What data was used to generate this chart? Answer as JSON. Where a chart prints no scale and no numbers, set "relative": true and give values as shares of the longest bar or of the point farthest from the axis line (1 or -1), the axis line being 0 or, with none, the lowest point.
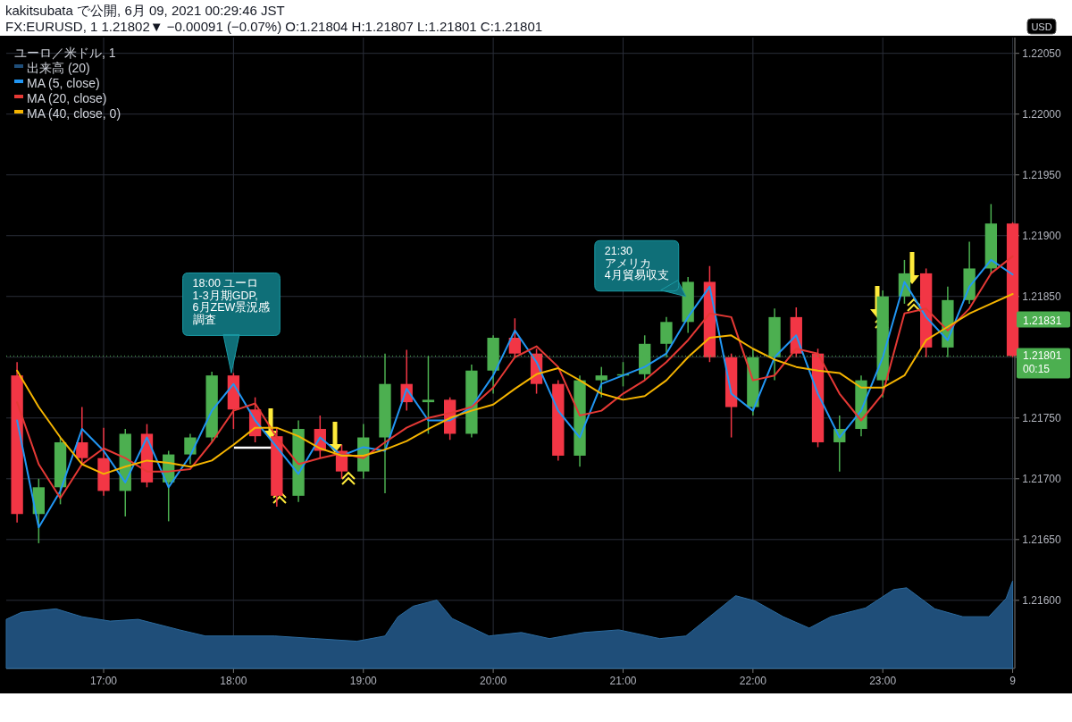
{
  "chart_data": [
    {
      "type": "candlestick",
      "title": "kakitsubata で公開, 6月 09, 2021 00:29:46 JST",
      "subtitle": "FX:EURUSD, 1 1.21802▼ −0.00091 (−0.07%) O:1.21804 H:1.21807 L:1.21801 C:1.21801",
      "legend_title": "ユーロ／米ドル, 1",
      "legend": "top left",
      "grid": "y",
      "tick_labels": "y",
      "xlim": [
        "2021-06-08T16:15",
        "2021-06-09T00:01"
      ],
      "ylim": [
        1.21544,
        1.22063
      ],
      "yticks": [
        {
          "value": 1.216,
          "label": "1.21600"
        },
        {
          "value": 1.2165,
          "label": "1.21650"
        },
        {
          "value": 1.217,
          "label": "1.21700"
        },
        {
          "value": 1.2175,
          "label": "1.21750"
        },
        {
          "value": 1.218,
          "label": null
        },
        {
          "value": 1.2185,
          "label": "1.21850"
        },
        {
          "value": 1.219,
          "label": "1.21900"
        },
        {
          "value": 1.2195,
          "label": "1.21950"
        },
        {
          "value": 1.22,
          "label": "1.22000"
        },
        {
          "value": 1.2205,
          "label": "1.22050"
        }
      ],
      "x": [
        "2021-06-08T16:20",
        "2021-06-08T16:30",
        "2021-06-08T16:40",
        "2021-06-08T16:50",
        "2021-06-08T17:00",
        "2021-06-08T17:10",
        "2021-06-08T17:20",
        "2021-06-08T17:30",
        "2021-06-08T17:40",
        "2021-06-08T17:50",
        "2021-06-08T18:00",
        "2021-06-08T18:10",
        "2021-06-08T18:20",
        "2021-06-08T18:30",
        "2021-06-08T18:40",
        "2021-06-08T18:50",
        "2021-06-08T19:00",
        "2021-06-08T19:10",
        "2021-06-08T19:20",
        "2021-06-08T19:30",
        "2021-06-08T19:40",
        "2021-06-08T19:50",
        "2021-06-08T20:00",
        "2021-06-08T20:10",
        "2021-06-08T20:20",
        "2021-06-08T20:30",
        "2021-06-08T20:40",
        "2021-06-08T20:50",
        "2021-06-08T21:00",
        "2021-06-08T21:10",
        "2021-06-08T21:20",
        "2021-06-08T21:30",
        "2021-06-08T21:40",
        "2021-06-08T21:50",
        "2021-06-08T22:00",
        "2021-06-08T22:10",
        "2021-06-08T22:20",
        "2021-06-08T22:30",
        "2021-06-08T22:40",
        "2021-06-08T22:50",
        "2021-06-08T23:00",
        "2021-06-08T23:10",
        "2021-06-08T23:20",
        "2021-06-08T23:30",
        "2021-06-08T23:40",
        "2021-06-08T23:50",
        "2021-06-09T00:00"
      ],
      "ohlc": [
        [
          1.21785,
          1.21796,
          1.21664,
          1.21671
        ],
        [
          1.21671,
          1.217,
          1.21647,
          1.21693
        ],
        [
          1.21693,
          1.21734,
          1.21679,
          1.2173
        ],
        [
          1.2173,
          1.21759,
          1.21712,
          1.21717
        ],
        [
          1.21717,
          1.21742,
          1.21686,
          1.2169
        ],
        [
          1.2169,
          1.21741,
          1.21669,
          1.21737
        ],
        [
          1.21737,
          1.21745,
          1.21693,
          1.21697
        ],
        [
          1.21697,
          1.21723,
          1.21665,
          1.2172
        ],
        [
          1.2172,
          1.21737,
          1.21712,
          1.21734
        ],
        [
          1.21734,
          1.21788,
          1.2173,
          1.21785
        ],
        [
          1.21785,
          1.21787,
          1.21741,
          1.21757
        ],
        [
          1.21757,
          1.21767,
          1.2173,
          1.21735
        ],
        [
          1.21735,
          1.21742,
          1.21677,
          1.21686
        ],
        [
          1.21686,
          1.21748,
          1.21681,
          1.21741
        ],
        [
          1.21741,
          1.21752,
          1.21717,
          1.21723
        ],
        [
          1.21723,
          1.21728,
          1.217,
          1.21706
        ],
        [
          1.21706,
          1.21745,
          1.217,
          1.21734
        ],
        [
          1.21734,
          1.21803,
          1.21688,
          1.21778
        ],
        [
          1.21778,
          1.21806,
          1.21756,
          1.21763
        ],
        [
          1.21763,
          1.21801,
          1.21737,
          1.21765
        ],
        [
          1.21765,
          1.21767,
          1.21732,
          1.21737
        ],
        [
          1.21737,
          1.21794,
          1.21734,
          1.21789
        ],
        [
          1.21789,
          1.21818,
          1.2177,
          1.21816
        ],
        [
          1.21816,
          1.21832,
          1.218,
          1.21803
        ],
        [
          1.21803,
          1.21807,
          1.2177,
          1.21778
        ],
        [
          1.21778,
          1.21781,
          1.21715,
          1.21719
        ],
        [
          1.21719,
          1.21785,
          1.2171,
          1.21781
        ],
        [
          1.21781,
          1.21792,
          1.21767,
          1.21785
        ],
        [
          1.21785,
          1.21796,
          1.21776,
          1.21786
        ],
        [
          1.21786,
          1.21818,
          1.21781,
          1.21811
        ],
        [
          1.21811,
          1.21833,
          1.218,
          1.21829
        ],
        [
          1.21829,
          1.21866,
          1.2182,
          1.21862
        ],
        [
          1.21862,
          1.21875,
          1.21796,
          1.218
        ],
        [
          1.218,
          1.21803,
          1.21734,
          1.21759
        ],
        [
          1.21759,
          1.21807,
          1.21752,
          1.218
        ],
        [
          1.218,
          1.2184,
          1.21781,
          1.21833
        ],
        [
          1.21833,
          1.21841,
          1.218,
          1.21803
        ],
        [
          1.21803,
          1.21807,
          1.21726,
          1.2173
        ],
        [
          1.2173,
          1.21752,
          1.21706,
          1.21741
        ],
        [
          1.21741,
          1.21785,
          1.21735,
          1.21781
        ],
        [
          1.21781,
          1.21855,
          1.21767,
          1.2185
        ],
        [
          1.2185,
          1.2188,
          1.21844,
          1.21869
        ],
        [
          1.21869,
          1.21873,
          1.218,
          1.21808
        ],
        [
          1.21808,
          1.21858,
          1.218,
          1.21847
        ],
        [
          1.21847,
          1.21895,
          1.21844,
          1.21873
        ],
        [
          1.21873,
          1.21926,
          1.21869,
          1.2191
        ],
        [
          1.2191,
          1.21911,
          1.218,
          1.21801
        ]
      ],
      "colors": [
        "#f23645",
        "#4caf50",
        "#4caf50",
        "#f23645",
        "#f23645",
        "#4caf50",
        "#f23645",
        "#4caf50",
        "#4caf50",
        "#4caf50",
        "#f23645",
        "#f23645",
        "#f23645",
        "#4caf50",
        "#f23645",
        "#f23645",
        "#4caf50",
        "#4caf50",
        "#f23645",
        "#4caf50",
        "#f23645",
        "#4caf50",
        "#4caf50",
        "#f23645",
        "#f23645",
        "#f23645",
        "#4caf50",
        "#4caf50",
        "#4caf50",
        "#4caf50",
        "#4caf50",
        "#4caf50",
        "#f23645",
        "#f23645",
        "#4caf50",
        "#4caf50",
        "#f23645",
        "#f23645",
        "#4caf50",
        "#4caf50",
        "#4caf50",
        "#4caf50",
        "#f23645",
        "#4caf50",
        "#4caf50",
        "#4caf50",
        "#f23645"
      ],
      "series": [
        {
          "name": "MA (5, close)",
          "type": "line",
          "color": "#2196f3",
          "values": [
            1.21748,
            1.2166,
            1.2169,
            1.21741,
            1.21723,
            1.21697,
            1.21734,
            1.21693,
            1.21719,
            1.21756,
            1.21778,
            1.21748,
            1.21726,
            1.21704,
            1.21734,
            1.21719,
            1.21726,
            1.21723,
            1.21774,
            1.21748,
            1.21748,
            1.21759,
            1.21785,
            1.21822,
            1.21796,
            1.21756,
            1.21734,
            1.21778,
            1.21785,
            1.21792,
            1.21803,
            1.21833,
            1.21858,
            1.2177,
            1.21756,
            1.218,
            1.21818,
            1.2177,
            1.21734,
            1.21756,
            1.218,
            1.21862,
            1.21833,
            1.21814,
            1.21858,
            1.2188,
            1.21868
          ]
        },
        {
          "name": "MA (20, close)",
          "type": "line",
          "color": "#e53935",
          "values": [
            1.21763,
            1.21712,
            1.21684,
            1.21712,
            1.21725,
            1.21717,
            1.21706,
            1.21706,
            1.21708,
            1.2173,
            1.21756,
            1.21762,
            1.21734,
            1.21712,
            1.21717,
            1.21721,
            1.21717,
            1.2173,
            1.21742,
            1.2175,
            1.21754,
            1.21759,
            1.21775,
            1.218,
            1.21809,
            1.21792,
            1.21752,
            1.21756,
            1.2177,
            1.21781,
            1.21796,
            1.21814,
            1.21836,
            1.21833,
            1.21781,
            1.21785,
            1.21807,
            1.21803,
            1.2177,
            1.21748,
            1.2177,
            1.21836,
            1.2184,
            1.21822,
            1.2184,
            1.21869,
            1.21883
          ]
        },
        {
          "name": "MA (40, close, 0)",
          "type": "line",
          "color": "#f5b400",
          "values": [
            1.21789,
            1.21759,
            1.21734,
            1.21712,
            1.21704,
            1.2171,
            1.21715,
            1.21713,
            1.2171,
            1.21715,
            1.21728,
            1.21742,
            1.21742,
            1.21735,
            1.21725,
            1.21719,
            1.21719,
            1.21724,
            1.21731,
            1.21741,
            1.2175,
            1.21756,
            1.21761,
            1.21774,
            1.21786,
            1.21791,
            1.21781,
            1.2177,
            1.21765,
            1.21768,
            1.21781,
            1.218,
            1.21816,
            1.21818,
            1.21807,
            1.21798,
            1.21792,
            1.21789,
            1.21787,
            1.21775,
            1.21775,
            1.21785,
            1.21814,
            1.21825,
            1.21836,
            1.21844,
            1.21852
          ]
        }
      ],
      "ref_lines": [
        {
          "axis": "y",
          "value": 1.21801,
          "label": "1.21801\n00:15",
          "color": "#4caf50",
          "line_style": "dotted"
        }
      ],
      "annotations": [
        {
          "text": "18:00 ユーロ\n1-3月期GDP,\n6月ZEW景況感調査",
          "x": "2021-06-08T17:59",
          "y": 1.21787
        },
        {
          "text": "21:30\nアメリカ\n4月貿易収支",
          "x": "2021-06-08T21:29",
          "y": 1.2185
        },
        {
          "text": "1.21831",
          "x": "2021-06-09T00:01",
          "y": 1.21831
        },
        "USD"
      ]
    },
    {
      "type": "area",
      "relative": true,
      "legend": "top left",
      "grid": "x",
      "xlim": [
        "2021-06-08T16:15",
        "2021-06-09T00:01"
      ],
      "xticks": [
        {
          "value": "2021-06-08T17:00",
          "label": "17:00"
        },
        {
          "value": "2021-06-08T18:00",
          "label": "18:00"
        },
        {
          "value": "2021-06-08T19:00",
          "label": "19:00"
        },
        {
          "value": "2021-06-08T20:00",
          "label": "20:00"
        },
        {
          "value": "2021-06-08T21:00",
          "label": "21:00"
        },
        {
          "value": "2021-06-08T22:00",
          "label": "22:00"
        },
        {
          "value": "2021-06-08T23:00",
          "label": "23:00"
        },
        {
          "value": "2021-06-09T00:00",
          "label": "9"
        }
      ],
      "x": [
        "2021-06-08T16:15",
        "2021-06-08T16:22",
        "2021-06-08T16:38",
        "2021-06-08T16:50",
        "2021-06-08T17:03",
        "2021-06-08T17:16",
        "2021-06-08T17:35",
        "2021-06-08T17:47",
        "2021-06-08T18:00",
        "2021-06-08T18:19",
        "2021-06-08T18:38",
        "2021-06-08T18:57",
        "2021-06-08T19:10",
        "2021-06-08T19:16",
        "2021-06-08T19:23",
        "2021-06-08T19:34",
        "2021-06-08T19:41",
        "2021-06-08T19:58",
        "2021-06-08T20:13",
        "2021-06-08T20:26",
        "2021-06-08T20:42",
        "2021-06-08T20:58",
        "2021-06-08T21:17",
        "2021-06-08T21:29",
        "2021-06-08T21:39",
        "2021-06-08T21:52",
        "2021-06-08T22:01",
        "2021-06-08T22:14",
        "2021-06-08T22:26",
        "2021-06-08T22:36",
        "2021-06-08T22:52",
        "2021-06-08T23:05",
        "2021-06-08T23:11",
        "2021-06-08T23:24",
        "2021-06-08T23:37",
        "2021-06-08T23:49",
        "2021-06-08T23:57",
        "2021-06-09T00:00"
      ],
      "series": [
        {
          "name": "出来高 (20)",
          "color": "#1f4e79",
          "values": [
            0.56,
            0.64,
            0.68,
            0.59,
            0.54,
            0.56,
            0.44,
            0.37,
            0.37,
            0.37,
            0.34,
            0.31,
            0.37,
            0.59,
            0.71,
            0.78,
            0.57,
            0.37,
            0.41,
            0.34,
            0.41,
            0.44,
            0.34,
            0.37,
            0.57,
            0.83,
            0.77,
            0.59,
            0.46,
            0.59,
            0.69,
            0.9,
            0.92,
            0.68,
            0.59,
            0.59,
            0.8,
            1
          ]
        }
      ]
    }
  ]
}
